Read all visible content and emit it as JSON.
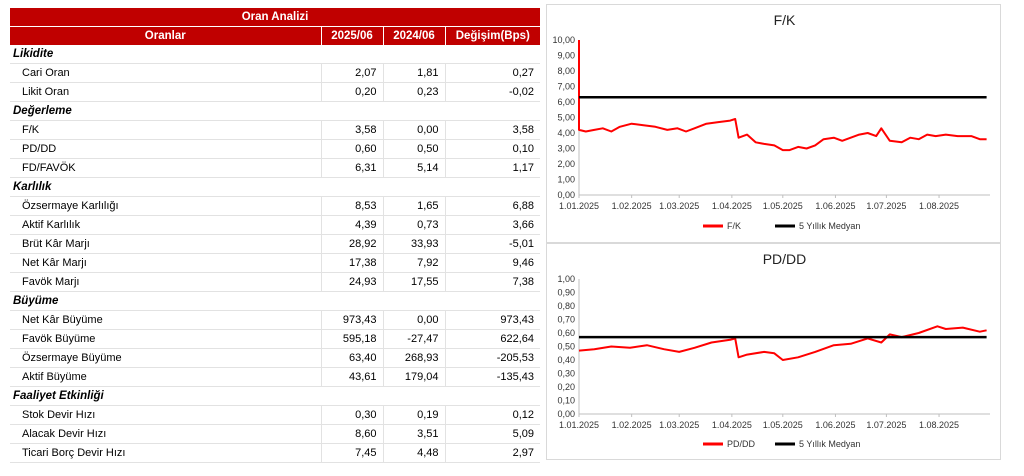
{
  "table": {
    "title": "Oran Analizi",
    "headers": [
      "Oranlar",
      "2025/06",
      "2024/06",
      "Değişim(Bps)"
    ],
    "sections": [
      {
        "name": "Likidite",
        "rows": [
          {
            "label": "Cari Oran",
            "v1": "2,07",
            "v2": "1,81",
            "chg": "0,27"
          },
          {
            "label": "Likit Oran",
            "v1": "0,20",
            "v2": "0,23",
            "chg": "-0,02"
          }
        ]
      },
      {
        "name": "Değerleme",
        "rows": [
          {
            "label": "F/K",
            "v1": "3,58",
            "v2": "0,00",
            "chg": "3,58"
          },
          {
            "label": "PD/DD",
            "v1": "0,60",
            "v2": "0,50",
            "chg": "0,10"
          },
          {
            "label": "FD/FAVÖK",
            "v1": "6,31",
            "v2": "5,14",
            "chg": "1,17"
          }
        ]
      },
      {
        "name": "Karlılık",
        "rows": [
          {
            "label": "Özsermaye Karlılığı",
            "v1": "8,53",
            "v2": "1,65",
            "chg": "6,88"
          },
          {
            "label": "Aktif Karlılık",
            "v1": "4,39",
            "v2": "0,73",
            "chg": "3,66"
          },
          {
            "label": "Brüt Kâr Marjı",
            "v1": "28,92",
            "v2": "33,93",
            "chg": "-5,01"
          },
          {
            "label": "Net Kâr Marjı",
            "v1": "17,38",
            "v2": "7,92",
            "chg": "9,46"
          },
          {
            "label": "Favök Marjı",
            "v1": "24,93",
            "v2": "17,55",
            "chg": "7,38"
          }
        ]
      },
      {
        "name": "Büyüme",
        "rows": [
          {
            "label": "Net Kâr Büyüme",
            "v1": "973,43",
            "v2": "0,00",
            "chg": "973,43"
          },
          {
            "label": "Favök Büyüme",
            "v1": "595,18",
            "v2": "-27,47",
            "chg": "622,64"
          },
          {
            "label": "Özsermaye Büyüme",
            "v1": "63,40",
            "v2": "268,93",
            "chg": "-205,53"
          },
          {
            "label": "Aktif Büyüme",
            "v1": "43,61",
            "v2": "179,04",
            "chg": "-135,43"
          }
        ]
      },
      {
        "name": "Faaliyet Etkinliği",
        "rows": [
          {
            "label": "Stok Devir Hızı",
            "v1": "0,30",
            "v2": "0,19",
            "chg": "0,12"
          },
          {
            "label": "Alacak Devir Hızı",
            "v1": "8,60",
            "v2": "3,51",
            "chg": "5,09"
          },
          {
            "label": "Ticari Borç Devir Hızı",
            "v1": "7,45",
            "v2": "4,48",
            "chg": "2,97"
          }
        ]
      }
    ]
  },
  "chart_data": [
    {
      "type": "line",
      "title": "F/K",
      "xlabel": "",
      "ylabel": "",
      "x_ticks": [
        "1.01.2025",
        "1.02.2025",
        "1.03.2025",
        "1.04.2025",
        "1.05.2025",
        "1.06.2025",
        "1.07.2025",
        "1.08.2025"
      ],
      "y_ticks": [
        "0,00",
        "1,00",
        "2,00",
        "3,00",
        "4,00",
        "5,00",
        "6,00",
        "7,00",
        "8,00",
        "9,00",
        "10,00"
      ],
      "ylim": [
        0,
        10
      ],
      "xlim": [
        "2025-01-01",
        "2025-08-31"
      ],
      "grid": false,
      "legend": "bottom",
      "series": [
        {
          "name": "F/K",
          "color": "#ff0000",
          "points": [
            [
              "2025-01-01",
              10.0
            ],
            [
              "2025-01-01",
              4.2
            ],
            [
              "2025-01-05",
              4.1
            ],
            [
              "2025-01-10",
              4.2
            ],
            [
              "2025-01-15",
              4.3
            ],
            [
              "2025-01-20",
              4.1
            ],
            [
              "2025-01-25",
              4.4
            ],
            [
              "2025-02-01",
              4.6
            ],
            [
              "2025-02-08",
              4.5
            ],
            [
              "2025-02-15",
              4.4
            ],
            [
              "2025-02-22",
              4.2
            ],
            [
              "2025-02-28",
              4.3
            ],
            [
              "2025-03-05",
              4.1
            ],
            [
              "2025-03-10",
              4.3
            ],
            [
              "2025-03-17",
              4.6
            ],
            [
              "2025-03-24",
              4.7
            ],
            [
              "2025-03-31",
              4.8
            ],
            [
              "2025-04-03",
              4.9
            ],
            [
              "2025-04-05",
              3.7
            ],
            [
              "2025-04-10",
              3.9
            ],
            [
              "2025-04-15",
              3.4
            ],
            [
              "2025-04-20",
              3.3
            ],
            [
              "2025-04-26",
              3.2
            ],
            [
              "2025-05-01",
              2.9
            ],
            [
              "2025-05-05",
              2.9
            ],
            [
              "2025-05-10",
              3.1
            ],
            [
              "2025-05-15",
              3.0
            ],
            [
              "2025-05-20",
              3.2
            ],
            [
              "2025-05-25",
              3.6
            ],
            [
              "2025-05-31",
              3.7
            ],
            [
              "2025-06-05",
              3.5
            ],
            [
              "2025-06-10",
              3.7
            ],
            [
              "2025-06-15",
              3.9
            ],
            [
              "2025-06-20",
              4.0
            ],
            [
              "2025-06-25",
              3.8
            ],
            [
              "2025-06-28",
              4.3
            ],
            [
              "2025-07-03",
              3.5
            ],
            [
              "2025-07-10",
              3.4
            ],
            [
              "2025-07-15",
              3.7
            ],
            [
              "2025-07-20",
              3.6
            ],
            [
              "2025-07-25",
              3.9
            ],
            [
              "2025-07-30",
              3.8
            ],
            [
              "2025-08-05",
              3.9
            ],
            [
              "2025-08-12",
              3.8
            ],
            [
              "2025-08-20",
              3.8
            ],
            [
              "2025-08-25",
              3.6
            ],
            [
              "2025-08-29",
              3.6
            ]
          ]
        },
        {
          "name": "5 Yıllık Medyan",
          "color": "#000000",
          "points": [
            [
              "2025-01-01",
              6.3
            ],
            [
              "2025-08-29",
              6.3
            ]
          ]
        }
      ]
    },
    {
      "type": "line",
      "title": "PD/DD",
      "xlabel": "",
      "ylabel": "",
      "x_ticks": [
        "1.01.2025",
        "1.02.2025",
        "1.03.2025",
        "1.04.2025",
        "1.05.2025",
        "1.06.2025",
        "1.07.2025",
        "1.08.2025"
      ],
      "y_ticks": [
        "0,00",
        "0,10",
        "0,20",
        "0,30",
        "0,40",
        "0,50",
        "0,60",
        "0,70",
        "0,80",
        "0,90",
        "1,00"
      ],
      "ylim": [
        0,
        1
      ],
      "xlim": [
        "2025-01-01",
        "2025-08-31"
      ],
      "grid": false,
      "legend": "bottom",
      "series": [
        {
          "name": "PD/DD",
          "color": "#ff0000",
          "points": [
            [
              "2025-01-01",
              0.47
            ],
            [
              "2025-01-10",
              0.48
            ],
            [
              "2025-01-20",
              0.5
            ],
            [
              "2025-01-31",
              0.49
            ],
            [
              "2025-02-10",
              0.51
            ],
            [
              "2025-02-20",
              0.48
            ],
            [
              "2025-03-01",
              0.46
            ],
            [
              "2025-03-10",
              0.49
            ],
            [
              "2025-03-20",
              0.53
            ],
            [
              "2025-03-31",
              0.55
            ],
            [
              "2025-04-03",
              0.56
            ],
            [
              "2025-04-05",
              0.42
            ],
            [
              "2025-04-10",
              0.44
            ],
            [
              "2025-04-20",
              0.46
            ],
            [
              "2025-04-26",
              0.45
            ],
            [
              "2025-05-01",
              0.4
            ],
            [
              "2025-05-10",
              0.42
            ],
            [
              "2025-05-20",
              0.46
            ],
            [
              "2025-05-31",
              0.51
            ],
            [
              "2025-06-10",
              0.52
            ],
            [
              "2025-06-20",
              0.56
            ],
            [
              "2025-06-28",
              0.53
            ],
            [
              "2025-07-03",
              0.59
            ],
            [
              "2025-07-10",
              0.57
            ],
            [
              "2025-07-20",
              0.6
            ],
            [
              "2025-07-31",
              0.65
            ],
            [
              "2025-08-05",
              0.63
            ],
            [
              "2025-08-15",
              0.64
            ],
            [
              "2025-08-25",
              0.61
            ],
            [
              "2025-08-29",
              0.62
            ]
          ]
        },
        {
          "name": "5 Yıllık Medyan",
          "color": "#000000",
          "points": [
            [
              "2025-01-01",
              0.57
            ],
            [
              "2025-08-29",
              0.57
            ]
          ]
        }
      ]
    }
  ]
}
